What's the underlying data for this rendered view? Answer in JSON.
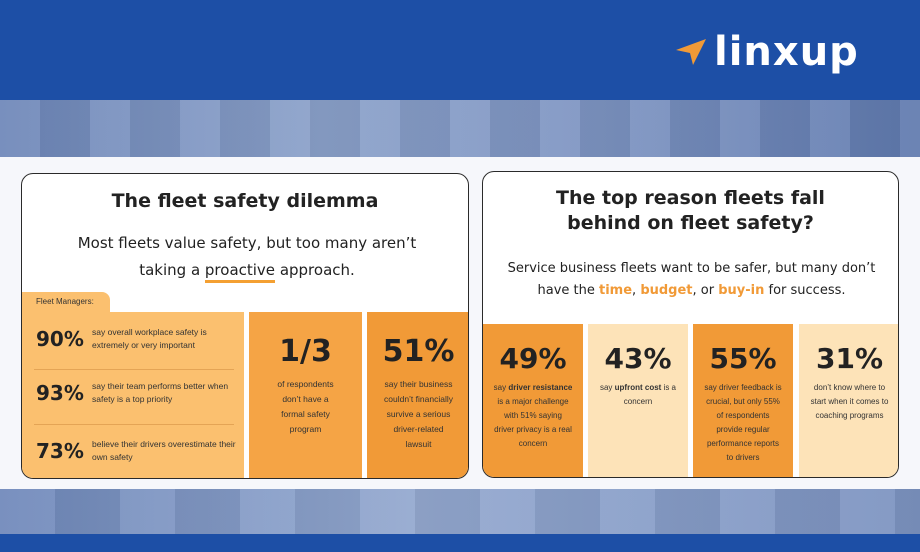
{
  "brand": {
    "name": "linxup",
    "accent": "#f19a37",
    "primary": "#1d4fa6"
  },
  "left_card": {
    "title": "The fleet safety dilemma",
    "subtitle_line1": "Most fleets value safety, but too many aren’t",
    "subtitle_pre": "taking a ",
    "subtitle_highlight": "proactive",
    "subtitle_post": " approach.",
    "tab_label": "Fleet Managers:",
    "manager_stats": [
      {
        "value": "90%",
        "text": "say overall workplace safety is extremely or very important"
      },
      {
        "value": "93%",
        "text": "say their team performs better when safety is a top priority"
      },
      {
        "value": "73%",
        "text": "believe their drivers overestimate their own safety"
      }
    ],
    "stat_boxes": [
      {
        "value": "1/3",
        "text": "of respondents don’t have a formal safety program"
      },
      {
        "value": "51%",
        "text": "say their business couldn’t financially survive a serious driver-related lawsuit"
      }
    ]
  },
  "right_card": {
    "title": "The top reason fleets fall behind on fleet safety?",
    "subtitle_pre": "Service business fleets want to be safer, but many don’t have the ",
    "hl1": "time",
    "sep1": ", ",
    "hl2": "budget",
    "sep2": ", or ",
    "hl3": "buy-in",
    "subtitle_post": " for success.",
    "boxes": [
      {
        "value": "49%",
        "pre": "say ",
        "bold": "driver resistance",
        "post": " is a major challenge with 51% saying driver privacy is a real concern"
      },
      {
        "value": "43%",
        "pre": "say ",
        "bold": "upfront cost",
        "post": " is a concern"
      },
      {
        "value": "55%",
        "pre": "",
        "bold": "",
        "post": "say driver feedback is crucial, but only 55% of respondents provide regular performance reports to drivers"
      },
      {
        "value": "31%",
        "pre": "",
        "bold": "",
        "post": "don’t know where to start when it comes to coaching programs"
      }
    ]
  }
}
